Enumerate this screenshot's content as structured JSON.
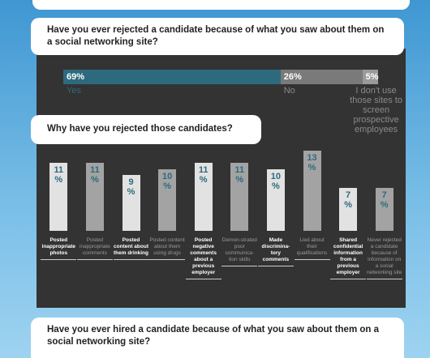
{
  "chart_data": [
    {
      "type": "stacked_bar",
      "title": "Have you ever rejected a candidate because of what you saw about them on a social networking site?",
      "categories": [
        "Yes",
        "No",
        "I don't use those sites to screen prospective employees"
      ],
      "values": [
        69,
        26,
        5
      ],
      "value_labels": [
        "69%",
        "26%",
        "5%"
      ],
      "colors": [
        "#2e6a7e",
        "#7a7a7a",
        "#9a9a9a"
      ],
      "label_colors": [
        "#2e6a7e",
        "#8a8a8a",
        "#8a8a8a"
      ],
      "xlim": [
        0,
        100
      ]
    },
    {
      "type": "bar",
      "title": "Why have you rejected those candidates?",
      "categories": [
        "Posted inappropriate photos",
        "Posted inappropriate comments",
        "Posted content about them drinking",
        "Posted content about them using drugs",
        "Posted negative comments about a previous employer",
        "Demon-strated poor communica-tion skills",
        "Made discrimina-tory comments",
        "Lied about their qualifications",
        "Shared confidential information from a previous employer",
        "Never rejected a candidate because of information on a social networking site"
      ],
      "values": [
        11,
        11,
        9,
        10,
        11,
        11,
        10,
        13,
        7,
        7
      ],
      "value_labels": [
        "11 %",
        "11 %",
        "9 %",
        "10 %",
        "11 %",
        "11 %",
        "10 %",
        "13 %",
        "7 %",
        "7 %"
      ],
      "colors": [
        "#e2e2e2",
        "#a3a3a3"
      ],
      "label_colors": [
        "#ffffff",
        "#9a9a9a"
      ],
      "ylim": [
        0,
        13
      ]
    }
  ],
  "footer_question": "Have you ever hired a candidate because of what you saw about them on a social networking site?"
}
